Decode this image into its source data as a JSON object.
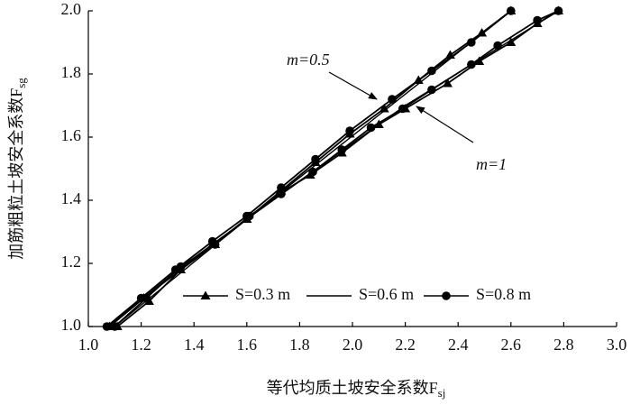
{
  "chart_data": {
    "type": "line",
    "xlabel": {
      "text": "等代均质土坡安全系数F",
      "sub": "sj"
    },
    "ylabel": {
      "text": "加筋粗粒土坡安全系数F",
      "sub": "sg"
    },
    "xlim": [
      1.0,
      3.0
    ],
    "xticks": [
      {
        "value": 1.0,
        "label": "1.0"
      },
      {
        "value": 1.2,
        "label": "1.2"
      },
      {
        "value": 1.4,
        "label": "1.4"
      },
      {
        "value": 1.6,
        "label": "1.6"
      },
      {
        "value": 1.8,
        "label": "1.8"
      },
      {
        "value": 2.0,
        "label": "2.0"
      },
      {
        "value": 2.2,
        "label": "2.2"
      },
      {
        "value": 2.4,
        "label": "2.4"
      },
      {
        "value": 2.6,
        "label": "2.6"
      },
      {
        "value": 2.8,
        "label": "2.8"
      },
      {
        "value": 3.0,
        "label": "3.0"
      }
    ],
    "ylim": [
      1.0,
      2.0
    ],
    "yticks": [
      {
        "value": 1.0,
        "label": "1.0"
      },
      {
        "value": 1.2,
        "label": "1.2"
      },
      {
        "value": 1.4,
        "label": "1.4"
      },
      {
        "value": 1.6,
        "label": "1.6"
      },
      {
        "value": 1.8,
        "label": "1.8"
      },
      {
        "value": 2.0,
        "label": "2.0"
      }
    ],
    "annotations": [
      "m=0.5",
      "m=1"
    ],
    "legend": "bottom-right",
    "series": [
      {
        "name": "S=0.3 m",
        "color": "#000000",
        "marker": "triangle",
        "curves": [
          {
            "x": [
              1.08,
              1.21,
              1.34,
              1.47,
              1.6,
              1.73,
              1.86,
              1.99,
              2.12,
              2.25,
              2.37,
              2.49,
              2.6
            ],
            "values": [
              1.0,
              1.09,
              1.18,
              1.26,
              1.34,
              1.43,
              1.52,
              1.61,
              1.69,
              1.78,
              1.86,
              1.93,
              2.0
            ]
          },
          {
            "x": [
              1.11,
              1.23,
              1.35,
              1.48,
              1.6,
              1.72,
              1.84,
              1.96,
              2.1,
              2.2,
              2.36,
              2.48,
              2.6,
              2.7,
              2.78
            ],
            "values": [
              1.0,
              1.08,
              1.18,
              1.26,
              1.34,
              1.42,
              1.48,
              1.55,
              1.64,
              1.69,
              1.77,
              1.84,
              1.9,
              1.96,
              2.0
            ]
          }
        ]
      },
      {
        "name": "S=0.6 m",
        "color": "#000000",
        "marker": "none",
        "curves": [
          {
            "x": [
              1.07,
              1.6,
              2.1,
              2.6
            ],
            "values": [
              1.0,
              1.34,
              1.67,
              2.0
            ]
          },
          {
            "x": [
              1.1,
              1.6,
              2.2,
              2.78
            ],
            "values": [
              1.0,
              1.34,
              1.7,
              2.0
            ]
          }
        ]
      },
      {
        "name": "S=0.8 m",
        "color": "#000000",
        "marker": "circle",
        "curves": [
          {
            "x": [
              1.07,
              1.2,
              1.33,
              1.47,
              1.6,
              1.73,
              1.86,
              1.99,
              2.15,
              2.3,
              2.45,
              2.6
            ],
            "values": [
              1.0,
              1.09,
              1.18,
              1.27,
              1.35,
              1.44,
              1.53,
              1.62,
              1.72,
              1.81,
              1.9,
              2.0
            ]
          },
          {
            "x": [
              1.1,
              1.22,
              1.35,
              1.48,
              1.61,
              1.73,
              1.85,
              1.96,
              2.07,
              2.19,
              2.3,
              2.45,
              2.55,
              2.7,
              2.78
            ],
            "values": [
              1.0,
              1.09,
              1.19,
              1.26,
              1.35,
              1.42,
              1.49,
              1.56,
              1.63,
              1.69,
              1.75,
              1.83,
              1.89,
              1.97,
              2.0
            ]
          }
        ]
      }
    ]
  }
}
